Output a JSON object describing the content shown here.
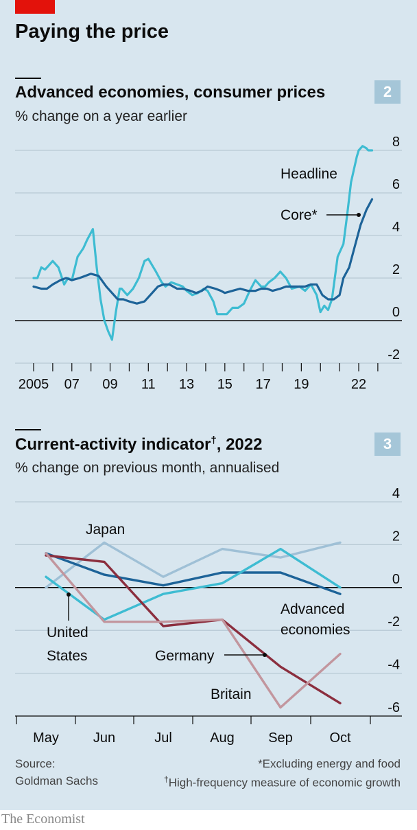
{
  "header": {
    "title": "Paying the price"
  },
  "chart_data": [
    {
      "type": "line",
      "panel_number": "2",
      "title": "Advanced economies, consumer prices",
      "subtitle": "% change on a year earlier",
      "ylim": [
        -2,
        8
      ],
      "yticks": [
        "8",
        "6",
        "4",
        "2",
        "0",
        "-2"
      ],
      "xlim": [
        2004.5,
        2023.8
      ],
      "xtick_labels": [
        "2005",
        "07",
        "09",
        "11",
        "13",
        "15",
        "17",
        "19",
        "22"
      ],
      "series": [
        {
          "name": "Headline",
          "color": "#3ebcd2",
          "x": [
            2005.0,
            2005.2,
            2005.4,
            2005.6,
            2005.8,
            2006.0,
            2006.3,
            2006.6,
            2006.8,
            2007.0,
            2007.3,
            2007.6,
            2007.8,
            2008.1,
            2008.3,
            2008.5,
            2008.7,
            2008.9,
            2009.1,
            2009.3,
            2009.5,
            2009.6,
            2009.9,
            2010.2,
            2010.5,
            2010.8,
            2011.0,
            2011.2,
            2011.4,
            2011.7,
            2011.9,
            2012.2,
            2012.5,
            2012.8,
            2013.0,
            2013.3,
            2013.6,
            2013.9,
            2014.1,
            2014.4,
            2014.6,
            2014.9,
            2015.1,
            2015.4,
            2015.7,
            2016.0,
            2016.3,
            2016.6,
            2016.9,
            2017.1,
            2017.3,
            2017.6,
            2017.9,
            2018.2,
            2018.5,
            2018.9,
            2019.2,
            2019.5,
            2019.8,
            2020.0,
            2020.2,
            2020.4,
            2020.6,
            2020.9,
            2021.2,
            2021.4,
            2021.6,
            2021.9,
            2022.0,
            2022.2,
            2022.4,
            2022.5,
            2022.7
          ],
          "y": [
            2.0,
            2.0,
            2.5,
            2.4,
            2.6,
            2.8,
            2.5,
            1.7,
            2.0,
            1.9,
            3.0,
            3.4,
            3.8,
            4.3,
            2.5,
            1.0,
            0.0,
            -0.5,
            -0.9,
            0.4,
            1.5,
            1.5,
            1.2,
            1.5,
            2.0,
            2.8,
            2.9,
            2.6,
            2.3,
            1.8,
            1.6,
            1.8,
            1.7,
            1.6,
            1.4,
            1.2,
            1.3,
            1.5,
            1.4,
            0.9,
            0.3,
            0.3,
            0.3,
            0.6,
            0.6,
            0.8,
            1.4,
            1.9,
            1.6,
            1.6,
            1.8,
            2.0,
            2.3,
            2.0,
            1.5,
            1.6,
            1.4,
            1.7,
            1.2,
            0.4,
            0.7,
            0.5,
            1.0,
            3.0,
            3.6,
            5.0,
            6.5,
            7.7,
            8.0,
            8.2,
            8.1,
            8.0,
            8.0
          ]
        },
        {
          "name": "Core*",
          "color": "#1d6398",
          "x": [
            2005.0,
            2005.4,
            2005.7,
            2006.0,
            2006.4,
            2006.7,
            2007.0,
            2007.4,
            2007.7,
            2008.0,
            2008.4,
            2008.8,
            2009.1,
            2009.4,
            2009.7,
            2010.0,
            2010.4,
            2010.8,
            2011.2,
            2011.5,
            2011.8,
            2012.1,
            2012.5,
            2012.8,
            2013.2,
            2013.5,
            2013.8,
            2014.1,
            2014.5,
            2014.8,
            2015.0,
            2015.4,
            2015.8,
            2016.2,
            2016.6,
            2016.9,
            2017.2,
            2017.5,
            2017.9,
            2018.2,
            2018.6,
            2018.9,
            2019.2,
            2019.5,
            2019.8,
            2020.1,
            2020.4,
            2020.7,
            2021.0,
            2021.2,
            2021.5,
            2021.8,
            2022.1,
            2022.4,
            2022.7
          ],
          "y": [
            1.6,
            1.5,
            1.5,
            1.7,
            1.9,
            2.0,
            1.9,
            2.0,
            2.1,
            2.2,
            2.1,
            1.6,
            1.3,
            1.0,
            1.0,
            0.9,
            0.8,
            0.9,
            1.3,
            1.6,
            1.7,
            1.7,
            1.5,
            1.5,
            1.4,
            1.3,
            1.4,
            1.6,
            1.5,
            1.4,
            1.3,
            1.4,
            1.5,
            1.4,
            1.4,
            1.5,
            1.5,
            1.4,
            1.5,
            1.6,
            1.6,
            1.6,
            1.6,
            1.7,
            1.7,
            1.2,
            1.0,
            1.0,
            1.2,
            2.0,
            2.5,
            3.5,
            4.5,
            5.2,
            5.7
          ]
        }
      ],
      "annotations": [
        "Headline",
        "Core*"
      ]
    },
    {
      "type": "line",
      "panel_number": "3",
      "title": "Current-activity indicator",
      "title_mark": "†",
      "title_suffix": ", 2022",
      "subtitle": "% change on previous month, annualised",
      "ylim": [
        -6,
        4
      ],
      "yticks": [
        "4",
        "2",
        "0",
        "-2",
        "-4",
        "-6"
      ],
      "categories": [
        "May",
        "Jun",
        "Jul",
        "Aug",
        "Sep",
        "Oct"
      ],
      "series": [
        {
          "name": "Japan",
          "color": "#9fc0d6",
          "values": [
            0.0,
            2.1,
            0.5,
            1.8,
            1.4,
            2.1
          ]
        },
        {
          "name": "Advanced economies",
          "color": "#1d6398",
          "values": [
            1.6,
            0.6,
            0.1,
            0.7,
            0.7,
            -0.3
          ]
        },
        {
          "name": "United States",
          "color": "#3ebcd2",
          "values": [
            0.5,
            -1.5,
            -0.3,
            0.2,
            1.8,
            0.0
          ]
        },
        {
          "name": "Germany",
          "color": "#8b2e3e",
          "values": [
            1.5,
            1.2,
            -1.8,
            -1.5,
            -3.7,
            -5.4
          ]
        },
        {
          "name": "Britain",
          "color": "#c2969e",
          "values": [
            1.6,
            -1.6,
            -1.6,
            -1.5,
            -5.6,
            -3.1
          ]
        }
      ],
      "annotations": [
        "Japan",
        "Advanced",
        "economies",
        "United",
        "States",
        "Germany",
        "Britain"
      ]
    }
  ],
  "footer": {
    "source_label": "Source:",
    "source_name": "Goldman Sachs",
    "note1": "*Excluding energy and food",
    "note2_mark": "†",
    "note2": "High-frequency measure of economic growth",
    "brand": "The Economist"
  }
}
